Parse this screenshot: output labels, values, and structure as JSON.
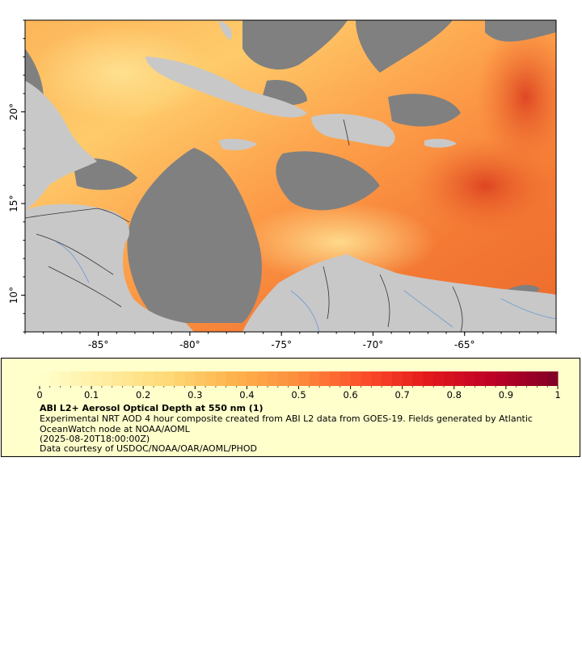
{
  "map": {
    "x_axis": {
      "tick_labels": [
        "-85°",
        "-80°",
        "-75°",
        "-70°",
        "-65°"
      ],
      "tick_values": [
        -85,
        -80,
        -75,
        -70,
        -65
      ],
      "range": [
        -89,
        -60
      ]
    },
    "y_axis": {
      "tick_labels": [
        "20°",
        "15°",
        "10°"
      ],
      "tick_values": [
        20,
        15,
        10
      ],
      "range": [
        8,
        25
      ]
    },
    "colors": {
      "land": "#c8c8c8",
      "no_data": "#808080",
      "border_lines": "#000000",
      "rivers": "#6b9bd1"
    }
  },
  "legend": {
    "title": "ABI L2+ Aerosol Optical Depth at 550 nm (1)",
    "description": "Experimental NRT AOD 4 hour composite created from ABI L2 data from GOES-19. Fields generated by Atlantic OceanWatch node at NOAA/AOML",
    "timestamp": "(2025-08-20T18:00:00Z)",
    "credit": "Data courtesy of USDOC/NOAA/OAR/AOML/PHOD",
    "scale_labels": [
      "0",
      "0.1",
      "0.2",
      "0.3",
      "0.4",
      "0.5",
      "0.6",
      "0.7",
      "0.8",
      "0.9",
      "1"
    ],
    "scale_range": [
      0,
      1
    ],
    "colormap": [
      "#ffffcc",
      "#ffeda0",
      "#fed976",
      "#feb24c",
      "#fd8d3c",
      "#fc4e2a",
      "#e31a1c",
      "#bd0026",
      "#800026"
    ]
  }
}
